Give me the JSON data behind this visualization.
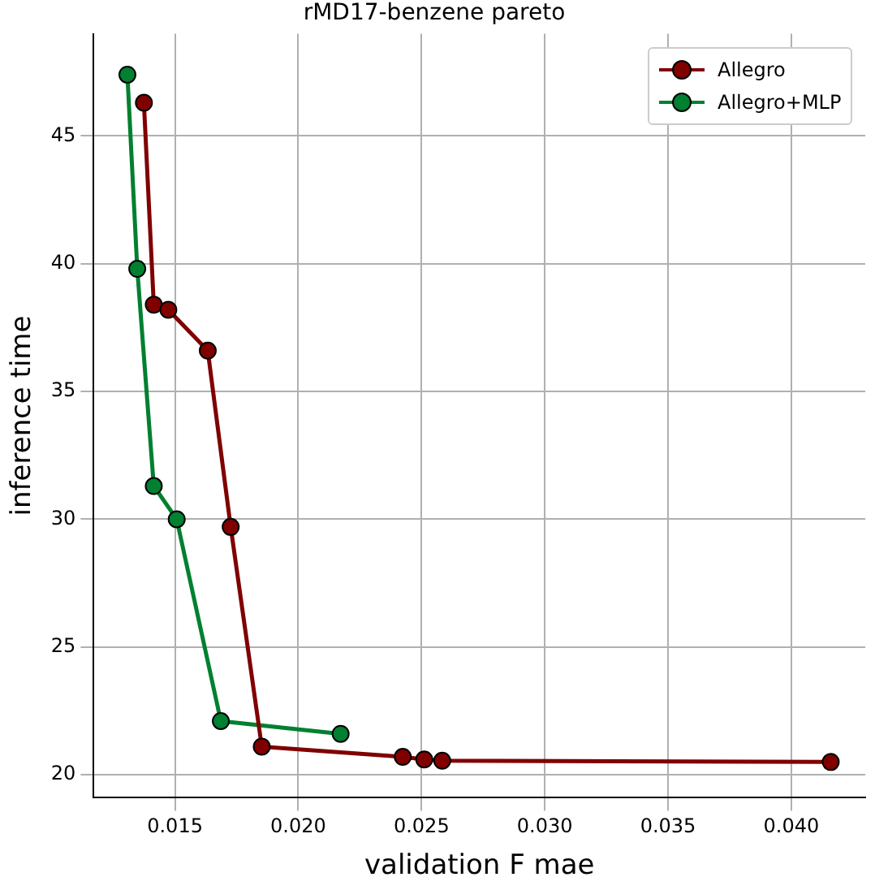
{
  "chart_data": {
    "type": "line",
    "title": "rMD17-benzene pareto",
    "xlabel": "validation F mae",
    "ylabel": "inference time",
    "xlim": [
      0.0117,
      0.043
    ],
    "ylim": [
      19.1,
      49
    ],
    "xticks": [
      {
        "value": 0.015,
        "label": "0.015"
      },
      {
        "value": 0.02,
        "label": "0.020"
      },
      {
        "value": 0.025,
        "label": "0.025"
      },
      {
        "value": 0.03,
        "label": "0.030"
      },
      {
        "value": 0.035,
        "label": "0.035"
      },
      {
        "value": 0.04,
        "label": "0.040"
      }
    ],
    "yticks": [
      20,
      25,
      30,
      35,
      40,
      45
    ],
    "grid": true,
    "legend": "top right",
    "marker": "circle",
    "line_style": "solid",
    "series": [
      {
        "name": "Allegro",
        "color": "#800000",
        "x": [
          0.01374,
          0.01414,
          0.01473,
          0.01633,
          0.01726,
          0.01852,
          0.02424,
          0.02511,
          0.02584,
          0.0416
        ],
        "values": [
          46.3,
          38.4,
          38.2,
          36.6,
          29.7,
          21.1,
          20.7,
          20.6,
          20.55,
          20.5
        ]
      },
      {
        "name": "Allegro+MLP",
        "color": "#008030",
        "x": [
          0.01307,
          0.01347,
          0.01414,
          0.01507,
          0.01686,
          0.02172
        ],
        "values": [
          47.4,
          39.8,
          31.3,
          30.0,
          22.1,
          21.6
        ]
      }
    ]
  }
}
